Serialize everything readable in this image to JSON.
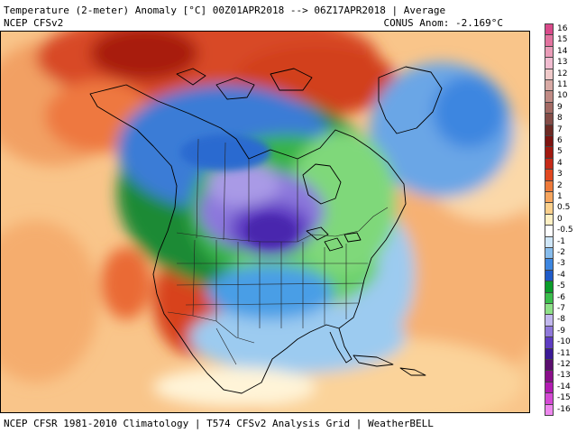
{
  "header": {
    "title": "Temperature (2-meter) Anomaly  [°C] 00Z01APR2018 --> 06Z17APR2018 | Average",
    "model": "NCEP CFSv2",
    "conus_anomaly": "CONUS Anom: -2.169°C"
  },
  "footer": {
    "text": "NCEP CFSR 1981-2010 Climatology | T574 CFSv2 Analysis Grid | WeatherBELL"
  },
  "colorbar": {
    "levels": [
      {
        "label": "16",
        "color": "#d94a8a"
      },
      {
        "label": "15",
        "color": "#e2739f"
      },
      {
        "label": "14",
        "color": "#ea9cb8"
      },
      {
        "label": "13",
        "color": "#f1bcd0"
      },
      {
        "label": "12",
        "color": "#efc9c9"
      },
      {
        "label": "11",
        "color": "#d8aaa5"
      },
      {
        "label": "10",
        "color": "#c08b85"
      },
      {
        "label": "9",
        "color": "#a36a64"
      },
      {
        "label": "8",
        "color": "#844c47"
      },
      {
        "label": "7",
        "color": "#6d2a24"
      },
      {
        "label": "6",
        "color": "#7d1410"
      },
      {
        "label": "5",
        "color": "#a11910"
      },
      {
        "label": "4",
        "color": "#c52a18"
      },
      {
        "label": "3",
        "color": "#e04820"
      },
      {
        "label": "2",
        "color": "#ee7a3a"
      },
      {
        "label": "1",
        "color": "#f6a55e"
      },
      {
        "label": "0.5",
        "color": "#fbd08c"
      },
      {
        "label": "0",
        "color": "#fff0c4"
      },
      {
        "label": "-0.5",
        "color": "#ffffff"
      },
      {
        "label": "-1",
        "color": "#cfe6f7"
      },
      {
        "label": "-2",
        "color": "#87bcec"
      },
      {
        "label": "-3",
        "color": "#3d86e0"
      },
      {
        "label": "-4",
        "color": "#1f5bc8"
      },
      {
        "label": "-5",
        "color": "#0a9c2a"
      },
      {
        "label": "-6",
        "color": "#3bbe4c"
      },
      {
        "label": "-7",
        "color": "#8ee088"
      },
      {
        "label": "-8",
        "color": "#c2b8ee"
      },
      {
        "label": "-9",
        "color": "#8f78da"
      },
      {
        "label": "-10",
        "color": "#5e3cc2"
      },
      {
        "label": "-11",
        "color": "#3b1a96"
      },
      {
        "label": "-12",
        "color": "#5a0e6e"
      },
      {
        "label": "-13",
        "color": "#8a0f8a"
      },
      {
        "label": "-14",
        "color": "#b21cb2"
      },
      {
        "label": "-15",
        "color": "#d44ad4"
      },
      {
        "label": "-16",
        "color": "#ee88ee"
      }
    ]
  }
}
